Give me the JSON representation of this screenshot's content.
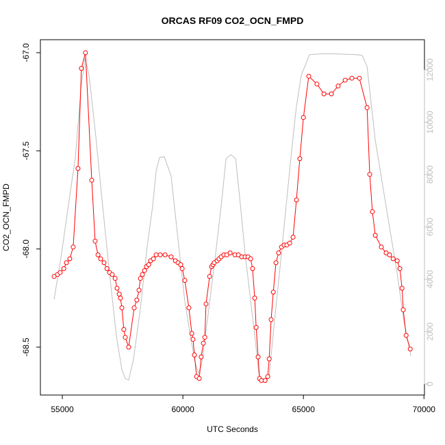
{
  "chart_data": {
    "type": "line",
    "title": "ORCAS RF09 CO2_OCN_FMPD",
    "xlabel": "UTC Seconds",
    "ylabel": "CO2_OCN_FMPD",
    "xlim": [
      54090,
      70020
    ],
    "xticks": [
      55000,
      60000,
      65000,
      70000
    ],
    "ylim": [
      -68.744,
      -66.934
    ],
    "yticks": [
      {
        "value": -68.5,
        "label": "-68.5"
      },
      {
        "value": -68.0,
        "label": "-68.0"
      },
      {
        "value": -67.5,
        "label": "-67.5"
      },
      {
        "value": -67.0,
        "label": "-67.0"
      }
    ],
    "y2lim": [
      -420,
      13150
    ],
    "y2ticks": [
      0,
      2000,
      4000,
      6000,
      8000,
      10000,
      12000
    ],
    "y2color": "#bebebe",
    "series": [
      {
        "color": "#bebebe",
        "axis": "y2",
        "x": [
          54660,
          54970,
          55250,
          55540,
          55770,
          55940,
          56110,
          56390,
          56670,
          56960,
          57240,
          57470,
          57610,
          57750,
          57950,
          58240,
          58520,
          58750,
          58890,
          59030,
          59230,
          59510,
          59800,
          60080,
          60310,
          60510,
          60650,
          60790,
          61080,
          61360,
          61590,
          61790,
          61990,
          62190,
          62360,
          62580,
          62780,
          62980,
          63150,
          63290,
          63430,
          63580,
          63770,
          64060,
          64340,
          64570,
          64710,
          64910,
          65250,
          65760,
          66330,
          67180,
          67440,
          67640,
          67980,
          68330,
          68610,
          68890,
          69170,
          69460
        ],
        "values": [
          3240,
          4990,
          6820,
          8650,
          11270,
          12440,
          11790,
          9440,
          6820,
          4210,
          1850,
          550,
          210,
          150,
          940,
          2900,
          5250,
          6820,
          8130,
          8650,
          8680,
          7950,
          5510,
          3160,
          1850,
          810,
          410,
          810,
          2900,
          4990,
          6820,
          8600,
          8760,
          8600,
          7080,
          4990,
          3420,
          1850,
          410,
          100,
          100,
          340,
          2120,
          4730,
          7340,
          9440,
          10610,
          11790,
          12580,
          12610,
          12610,
          12580,
          12550,
          12130,
          9310,
          7340,
          5780,
          4210,
          2380,
          1070
        ]
      },
      {
        "color": "#ff0000",
        "marker": "circle",
        "x": [
          54660,
          54800,
          54910,
          55060,
          55170,
          55310,
          55450,
          55650,
          55790,
          55960,
          56220,
          56360,
          56480,
          56590,
          56730,
          56850,
          56960,
          57070,
          57190,
          57270,
          57360,
          57410,
          57470,
          57550,
          57610,
          57750,
          57980,
          58090,
          58180,
          58240,
          58320,
          58410,
          58490,
          58580,
          58660,
          58780,
          58890,
          59060,
          59260,
          59510,
          59690,
          59800,
          59910,
          59970,
          60080,
          60250,
          60370,
          60420,
          60480,
          60570,
          60680,
          60760,
          60850,
          60910,
          60960,
          61110,
          61190,
          61250,
          61300,
          61420,
          61500,
          61590,
          61700,
          61820,
          61960,
          62160,
          62300,
          62440,
          62580,
          62700,
          62810,
          62890,
          62980,
          63040,
          63120,
          63180,
          63260,
          63410,
          63520,
          63580,
          63660,
          63750,
          63860,
          63970,
          64090,
          64200,
          64310,
          64430,
          64570,
          64710,
          64850,
          65000,
          65220,
          65560,
          65850,
          66160,
          66440,
          66730,
          67010,
          67320,
          67640,
          67750,
          67860,
          67980,
          68230,
          68430,
          68570,
          68720,
          68890,
          69000,
          69090,
          69140,
          69260,
          69430
        ],
        "values": [
          -68.14,
          -68.13,
          -68.12,
          -68.1,
          -68.07,
          -68.05,
          -67.99,
          -67.59,
          -67.08,
          -67.0,
          -67.65,
          -67.96,
          -68.03,
          -68.05,
          -68.07,
          -68.1,
          -68.12,
          -68.13,
          -68.15,
          -68.2,
          -68.23,
          -68.25,
          -68.3,
          -68.41,
          -68.45,
          -68.5,
          -68.3,
          -68.26,
          -68.21,
          -68.15,
          -68.13,
          -68.11,
          -68.09,
          -68.08,
          -68.06,
          -68.05,
          -68.03,
          -68.03,
          -68.03,
          -68.04,
          -68.06,
          -68.07,
          -68.08,
          -68.1,
          -68.16,
          -68.3,
          -68.43,
          -68.46,
          -68.54,
          -68.65,
          -68.66,
          -68.55,
          -68.48,
          -68.45,
          -68.28,
          -68.14,
          -68.09,
          -68.08,
          -68.07,
          -68.06,
          -68.05,
          -68.04,
          -68.03,
          -68.03,
          -68.02,
          -68.03,
          -68.03,
          -68.04,
          -68.04,
          -68.04,
          -68.05,
          -68.1,
          -68.25,
          -68.4,
          -68.55,
          -68.66,
          -68.67,
          -68.67,
          -68.65,
          -68.56,
          -68.36,
          -68.22,
          -68.07,
          -68.02,
          -67.99,
          -67.98,
          -67.98,
          -67.97,
          -67.94,
          -67.75,
          -67.54,
          -67.33,
          -67.12,
          -67.16,
          -67.21,
          -67.21,
          -67.17,
          -67.14,
          -67.13,
          -67.13,
          -67.28,
          -67.62,
          -67.81,
          -67.93,
          -67.99,
          -68.02,
          -68.03,
          -68.05,
          -68.06,
          -68.1,
          -68.2,
          -68.31,
          -68.44,
          -68.51
        ]
      }
    ]
  }
}
